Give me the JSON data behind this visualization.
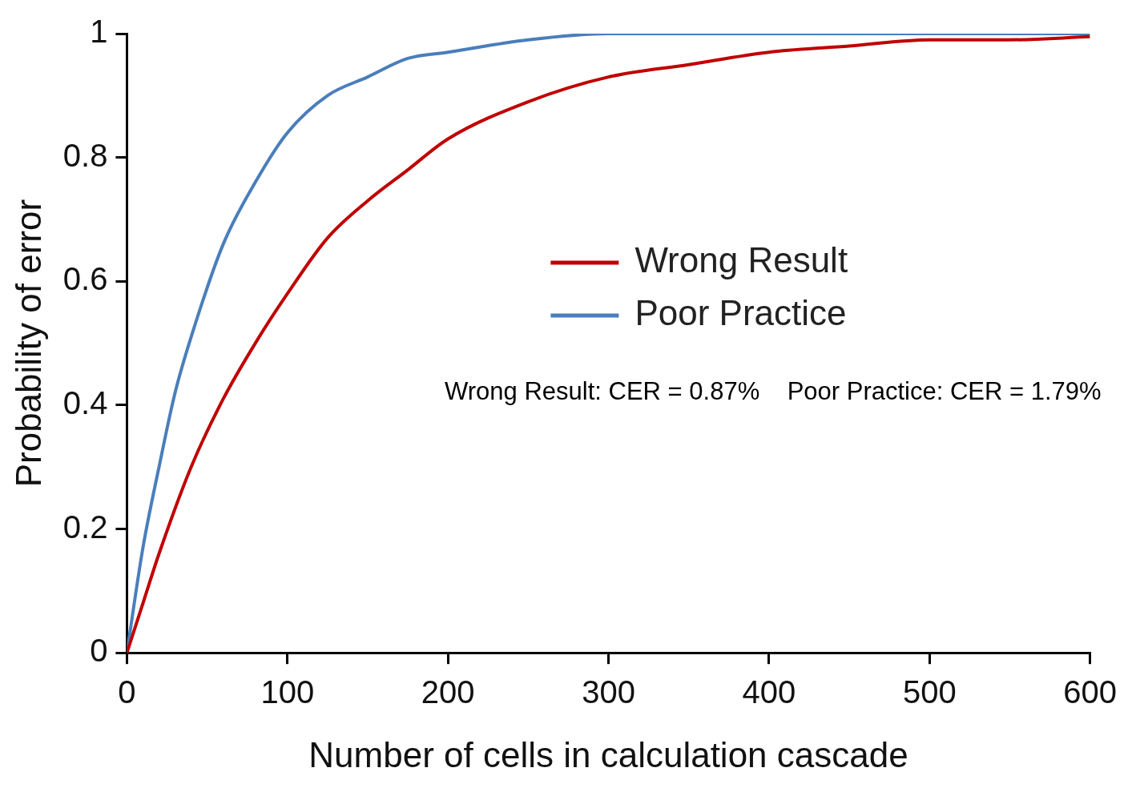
{
  "chart_data": {
    "type": "line",
    "xlabel": "Number of cells in calculation cascade",
    "ylabel": "Probability of error",
    "xlim": [
      0,
      600
    ],
    "xticks": [
      0,
      100,
      200,
      300,
      400,
      500,
      600
    ],
    "ylim": [
      0,
      1
    ],
    "yticks": [
      0,
      0.2,
      0.4,
      0.6,
      0.8,
      1
    ],
    "grid": false,
    "legend": "right",
    "marker": "none",
    "line_style": "solid",
    "series": [
      {
        "name": "Wrong Result",
        "color": "#c00000",
        "x": [
          0,
          10,
          20,
          40,
          60,
          80,
          100,
          125,
          150,
          175,
          200,
          250,
          300,
          350,
          400,
          450,
          500,
          550,
          600
        ],
        "values": [
          0,
          0.08,
          0.16,
          0.3,
          0.41,
          0.5,
          0.58,
          0.67,
          0.73,
          0.78,
          0.83,
          0.89,
          0.93,
          0.95,
          0.97,
          0.98,
          0.99,
          0.99,
          0.995
        ]
      },
      {
        "name": "Poor Practice",
        "color": "#4a7ebb",
        "x": [
          0,
          10,
          20,
          30,
          40,
          60,
          80,
          100,
          125,
          150,
          175,
          200,
          250,
          300,
          400,
          500,
          600
        ],
        "values": [
          0,
          0.17,
          0.3,
          0.42,
          0.51,
          0.66,
          0.76,
          0.84,
          0.9,
          0.93,
          0.96,
          0.97,
          0.99,
          1,
          1,
          1,
          1
        ]
      }
    ],
    "annotations": [
      "Wrong Result: CER = 0.87%    Poor Practice: CER = 1.79%"
    ]
  }
}
